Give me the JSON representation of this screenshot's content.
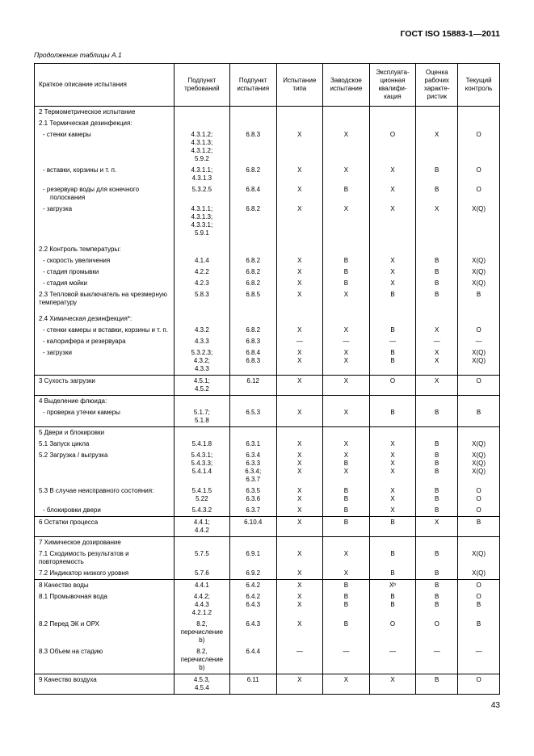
{
  "doc_title": "ГОСТ ISO 15883-1—2011",
  "continuation": "Продолжение таблицы А.1",
  "page_num": "43",
  "headers": {
    "c1": "Краткое описание испытания",
    "c2": "Подпункт требований",
    "c3": "Подпункт испытания",
    "c4": "Испытание типа",
    "c5": "Заводское испытание",
    "c6": "Эксплуата­ционная квалифи­кация",
    "c7": "Оценка рабочих характе­ристик",
    "c8": "Текущий контроль"
  },
  "sections": [
    {
      "rows": [
        {
          "d": "2 Термометрическое испы­тание",
          "i": 0
        },
        {
          "d": "2.1 Термическая дезинфек­ция:",
          "i": 0
        },
        {
          "d": "- стенки камеры",
          "i": 1,
          "v": [
            "4.3.1.2; 4.3.1.3; 4.3.1.2; 5.9.2",
            "6.8.3",
            "X",
            "X",
            "O",
            "X",
            "O"
          ]
        },
        {
          "d": "- вставки, корзины и т. п.",
          "i": 1,
          "v": [
            "4.3.1.1; 4.3.1.3",
            "6.8.2",
            "X",
            "X",
            "X",
            "B",
            "O"
          ]
        },
        {
          "d": "- резервуар воды для конеч­ного полоскания",
          "i": 1,
          "v": [
            "5.3.2.5",
            "6.8.4",
            "X",
            "B",
            "X",
            "B",
            "O"
          ]
        },
        {
          "d": "- загрузка",
          "i": 1,
          "v": [
            "4.3.1.1; 4.3.1.3; 4.3.3.1; 5.9.1",
            "6.8.2",
            "X",
            "X",
            "X",
            "X",
            "X(Q)"
          ]
        },
        {
          "sp": true
        },
        {
          "d": "2.2 Контроль температуры:",
          "i": 0
        },
        {
          "d": "- скорость увеличения",
          "i": 1,
          "v": [
            "4.1.4",
            "6.8.2",
            "X",
            "B",
            "X",
            "B",
            "X(Q)"
          ]
        },
        {
          "d": "- стадия промывки",
          "i": 1,
          "v": [
            "4.2.2",
            "6.8.2",
            "X",
            "B",
            "X",
            "B",
            "X(Q)"
          ]
        },
        {
          "d": "- стадия мойки",
          "i": 1,
          "v": [
            "4.2.3",
            "6.8.2",
            "X",
            "B",
            "X",
            "B",
            "X(Q)"
          ]
        },
        {
          "d": "2.3 Тепловой выключатель на чрезмерную температуру",
          "i": 0,
          "v": [
            "5.8.3",
            "6.8.5",
            "X",
            "X",
            "B",
            "B",
            "B"
          ]
        },
        {
          "sp": true
        },
        {
          "d": "2.4 Химическая дезинфек­ция*:",
          "i": 0
        },
        {
          "d": "- стенки камеры и вставки, корзины и т. п.",
          "i": 1,
          "v": [
            "4.3.2",
            "6.8.2",
            "X",
            "X",
            "B",
            "X",
            "O"
          ]
        },
        {
          "d": "- калорифера и резервуара",
          "i": 1,
          "v": [
            "4.3.3",
            "6.8.3",
            "—",
            "—",
            "—",
            "—",
            "—"
          ]
        },
        {
          "d": "- загрузки",
          "i": 1,
          "v": [
            "5.3.2.3; 4.3.2; 4.3.3",
            "6.8.4 6.8.3",
            "X X",
            "X X",
            "B B",
            "X X",
            "X(Q) X(Q)"
          ]
        }
      ]
    },
    {
      "rows": [
        {
          "d": "3 Сухость загрузки",
          "i": 0,
          "v": [
            "4.5.1; 4.5.2",
            "6.12",
            "X",
            "X",
            "O",
            "X",
            "O"
          ]
        }
      ]
    },
    {
      "rows": [
        {
          "d": "4 Выделение флюида:",
          "i": 0
        },
        {
          "d": "- проверка утечки камеры",
          "i": 1,
          "v": [
            "5.1.7; 5.1.8",
            "6.5.3",
            "X",
            "X",
            "B",
            "B",
            "B"
          ]
        }
      ]
    },
    {
      "rows": [
        {
          "d": "5 Двери и блокировки",
          "i": 0
        },
        {
          "d": "5.1 Запуск цикла",
          "i": 0,
          "v": [
            "5.4.1.8",
            "6.3.1",
            "X",
            "X",
            "X",
            "B",
            "X(Q)"
          ]
        },
        {
          "d": "5.2 Загрузка / выгрузка",
          "i": 0,
          "v": [
            "5.4.3.1; 5.4.3.3; 5.4.1.4",
            "6.3.4 6.3.3 6.3.4; 6.3.7",
            "X X X",
            "X B X",
            "X X X",
            "B B B",
            "X(Q) X(Q) X(Q)"
          ]
        },
        {
          "d": "5.3 В случае неисправного состояния:",
          "i": 0,
          "v": [
            "5.4.1.5 5.22",
            "6.3.5 6.3.6",
            "X X",
            "B B",
            "X X",
            "B B",
            "O O"
          ]
        },
        {
          "d": "- блокировки двери",
          "i": 1,
          "v": [
            "5.4.3.2",
            "6.3.7",
            "X",
            "B",
            "X",
            "B",
            "O"
          ]
        }
      ]
    },
    {
      "rows": [
        {
          "d": "6 Остатки процесса",
          "i": 0,
          "v": [
            "4.4.1; 4.4.2",
            "6.10.4",
            "X",
            "B",
            "B",
            "X",
            "B"
          ]
        }
      ]
    },
    {
      "rows": [
        {
          "d": "7 Химическое дозирование",
          "i": 0
        },
        {
          "d": "7.1 Сходимость результатов и повторяемость",
          "i": 0,
          "v": [
            "5.7.5",
            "6.9.1",
            "X",
            "X",
            "B",
            "B",
            "X(Q)"
          ]
        },
        {
          "d": "7.2 Индикатор низкого уров­ня",
          "i": 0,
          "v": [
            "5.7.6",
            "6.9.2",
            "X",
            "X",
            "B",
            "B",
            "X(Q)"
          ]
        }
      ]
    },
    {
      "rows": [
        {
          "d": "8 Качество воды",
          "i": 0,
          "v": [
            "4.4.1",
            "6.4.2",
            "X",
            "B",
            "Xᵇ",
            "B",
            "O"
          ]
        },
        {
          "d": "8.1 Промывочная вода",
          "i": 0,
          "v": [
            "4.4.2; 4.4.3 4.2.1.2",
            "6.4.2 6.4.3",
            "X X",
            "B B",
            "B B",
            "B B",
            "O B"
          ]
        },
        {
          "d": "8.2 Перед ЭК и ОРХ",
          "i": 0,
          "v": [
            "8.2, пере­числение b)",
            "6.4.3",
            "X",
            "B",
            "O",
            "O",
            "B"
          ]
        },
        {
          "d": "8.3 Объем на стадию",
          "i": 0,
          "v": [
            "8.2, пере­числение b)",
            "6.4.4",
            "—",
            "—",
            "—",
            "—",
            "—"
          ]
        }
      ]
    },
    {
      "rows": [
        {
          "d": "9 Качество воздуха",
          "i": 0,
          "v": [
            "4.5.3, 4.5.4",
            "6.11",
            "X",
            "X",
            "X",
            "B",
            "O"
          ]
        }
      ]
    }
  ]
}
